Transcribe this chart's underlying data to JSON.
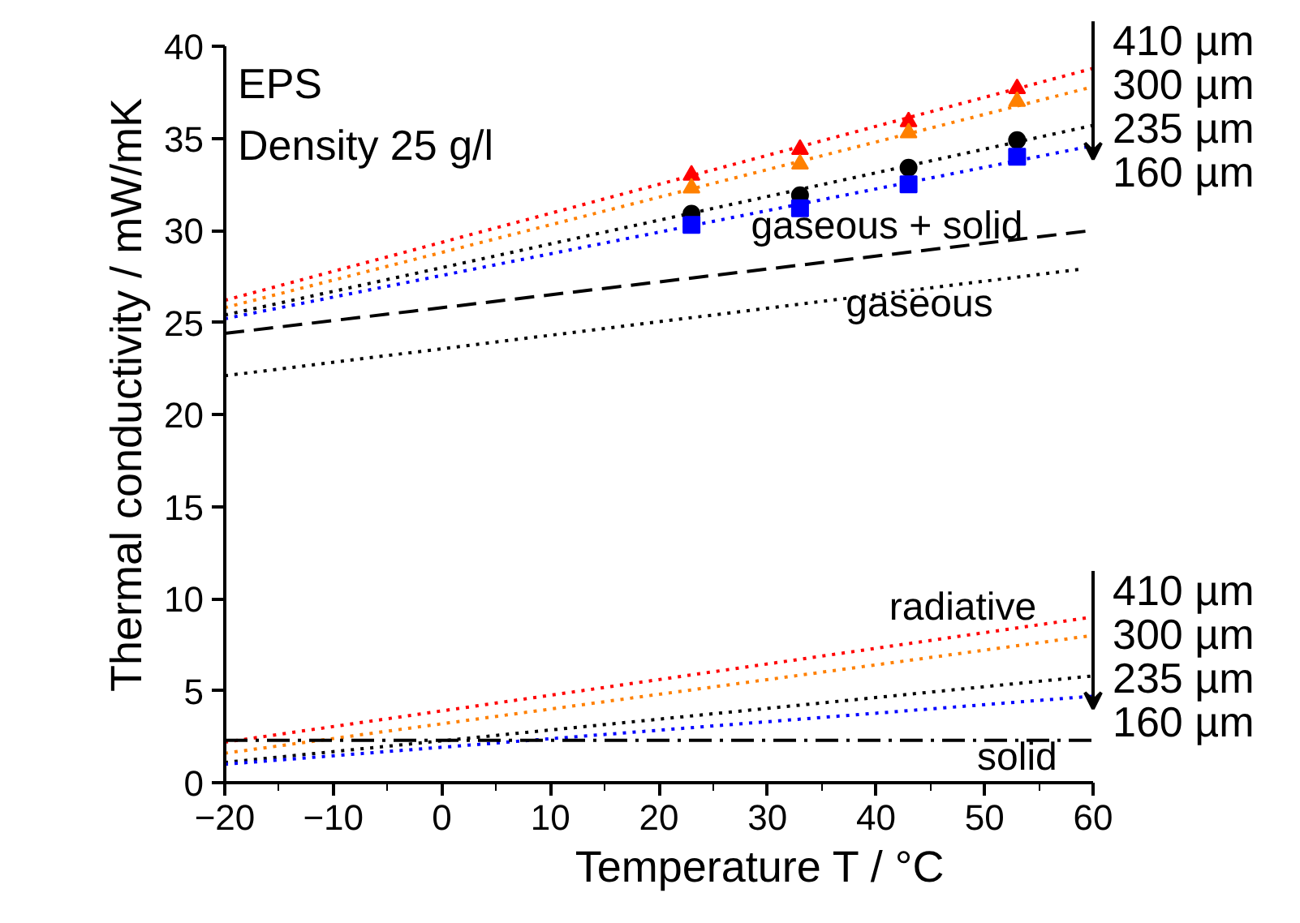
{
  "chart_data": {
    "type": "line",
    "xlabel": "Temperature T / °C",
    "ylabel": "Thermal conductivity / mW/mK",
    "xlim": [
      -20,
      60
    ],
    "xticks": [
      -20,
      -10,
      0,
      10,
      20,
      30,
      40,
      50,
      60
    ],
    "ylim": [
      0,
      40
    ],
    "yticks": [
      0,
      5,
      10,
      15,
      20,
      25,
      30,
      35,
      40
    ],
    "grid": false,
    "legend": "right",
    "series": [
      {
        "type": "scatter",
        "marker": "triangle",
        "color": "#ff0000",
        "x": [
          23,
          33,
          43,
          53
        ],
        "values": [
          33.0,
          34.4,
          35.9,
          37.7
        ]
      },
      {
        "type": "scatter",
        "marker": "triangle",
        "color": "#ff8000",
        "x": [
          23,
          33,
          43,
          53
        ],
        "values": [
          32.3,
          33.6,
          35.3,
          37.0
        ]
      },
      {
        "type": "scatter",
        "marker": "circle",
        "color": "#000000",
        "x": [
          23,
          33,
          43,
          53
        ],
        "values": [
          30.9,
          31.9,
          33.4,
          34.9
        ]
      },
      {
        "type": "scatter",
        "marker": "square",
        "color": "#0000ff",
        "x": [
          23,
          33,
          43,
          53
        ],
        "values": [
          30.3,
          31.2,
          32.5,
          34.0
        ]
      },
      {
        "type": "line",
        "name": "410 µm",
        "line_style": "dotted",
        "color": "#ff0000",
        "x": [
          -20,
          60
        ],
        "values": [
          26.2,
          38.8
        ]
      },
      {
        "type": "line",
        "name": "300 µm",
        "line_style": "dotted",
        "color": "#ff8000",
        "x": [
          -20,
          60
        ],
        "values": [
          25.8,
          37.8
        ]
      },
      {
        "type": "line",
        "name": "235 µm",
        "line_style": "dotted",
        "color": "#000000",
        "x": [
          -20,
          60
        ],
        "values": [
          25.4,
          35.7
        ]
      },
      {
        "type": "line",
        "name": "160 µm",
        "line_style": "dotted",
        "color": "#0000ff",
        "x": [
          -20,
          60
        ],
        "values": [
          25.2,
          34.6
        ]
      },
      {
        "type": "line",
        "line_style": "dashed",
        "color": "#000000",
        "x": [
          -20,
          60
        ],
        "values": [
          24.4,
          30.0
        ]
      },
      {
        "type": "line",
        "line_style": "dotted",
        "color": "#000000",
        "x": [
          -20,
          59
        ],
        "values": [
          22.1,
          27.9
        ]
      },
      {
        "type": "line",
        "name": "410 µm",
        "line_style": "dotted",
        "color": "#ff0000",
        "x": [
          -20,
          60
        ],
        "values": [
          2.2,
          9.0
        ]
      },
      {
        "type": "line",
        "name": "300 µm",
        "line_style": "dotted",
        "color": "#ff8000",
        "x": [
          -20,
          60
        ],
        "values": [
          1.6,
          8.0
        ]
      },
      {
        "type": "line",
        "name": "235 µm",
        "line_style": "dotted",
        "color": "#000000",
        "x": [
          -20,
          60
        ],
        "values": [
          1.1,
          5.8
        ]
      },
      {
        "type": "line",
        "name": "160 µm",
        "line_style": "dotted",
        "color": "#0000ff",
        "x": [
          -20,
          60
        ],
        "values": [
          1.0,
          4.7
        ]
      },
      {
        "type": "line",
        "line_style": "dashdot",
        "color": "#000000",
        "x": [
          -20,
          60
        ],
        "values": [
          2.3,
          2.3
        ]
      }
    ],
    "annotations": [
      "EPS",
      "Density 25 g/l",
      {
        "text": "gaseous + solid",
        "x": 41,
        "y": 28.67
      },
      {
        "text": "gaseous",
        "x": 44,
        "y": 26.9
      },
      {
        "text": "radiative",
        "x": 48,
        "y": 7.98
      },
      {
        "text": "solid",
        "x": 53,
        "y": 2.3
      }
    ]
  }
}
